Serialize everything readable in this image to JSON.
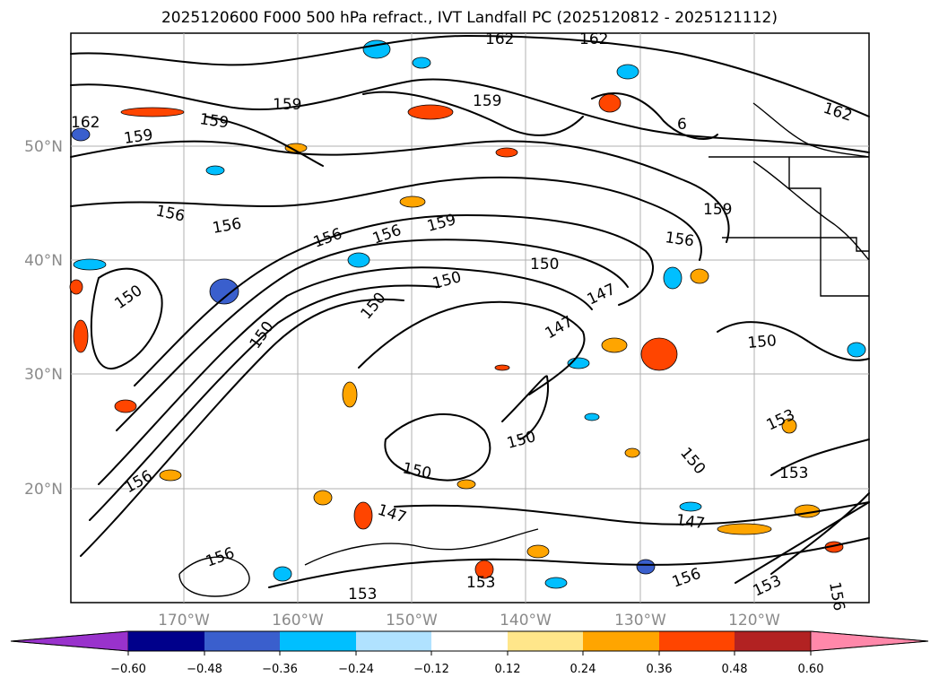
{
  "title": "2025120600 F000 500 hPa refract., IVT Landfall PC (2025120812 - 2025121112)",
  "lat_labels": [
    "50°N",
    "40°N",
    "30°N",
    "20°N"
  ],
  "lon_labels": [
    "170°W",
    "160°W",
    "150°W",
    "140°W",
    "130°W",
    "120°W"
  ],
  "contour_labels": [
    "162",
    "162",
    "159",
    "159",
    "159",
    "162",
    "162",
    "159",
    "6",
    "156",
    "156",
    "156",
    "156",
    "159",
    "159",
    "156",
    "150",
    "150",
    "150",
    "147",
    "147",
    "150",
    "150",
    "150",
    "150",
    "150",
    "147",
    "147",
    "150",
    "153",
    "153",
    "153",
    "153",
    "156",
    "156",
    "153",
    "156",
    "156"
  ],
  "colorbar": {
    "tick_labels": [
      "−0.60",
      "−0.48",
      "−0.36",
      "−0.24",
      "−0.12",
      "0.12",
      "0.24",
      "0.36",
      "0.48",
      "0.60"
    ],
    "colors": [
      "#9932cc",
      "#00008b",
      "#3a5fcd",
      "#00bfff",
      "#b0e2ff",
      "#ffffff",
      "#ffe68a",
      "#ffa500",
      "#ff4500",
      "#b22222",
      "#ff88aa"
    ]
  }
}
